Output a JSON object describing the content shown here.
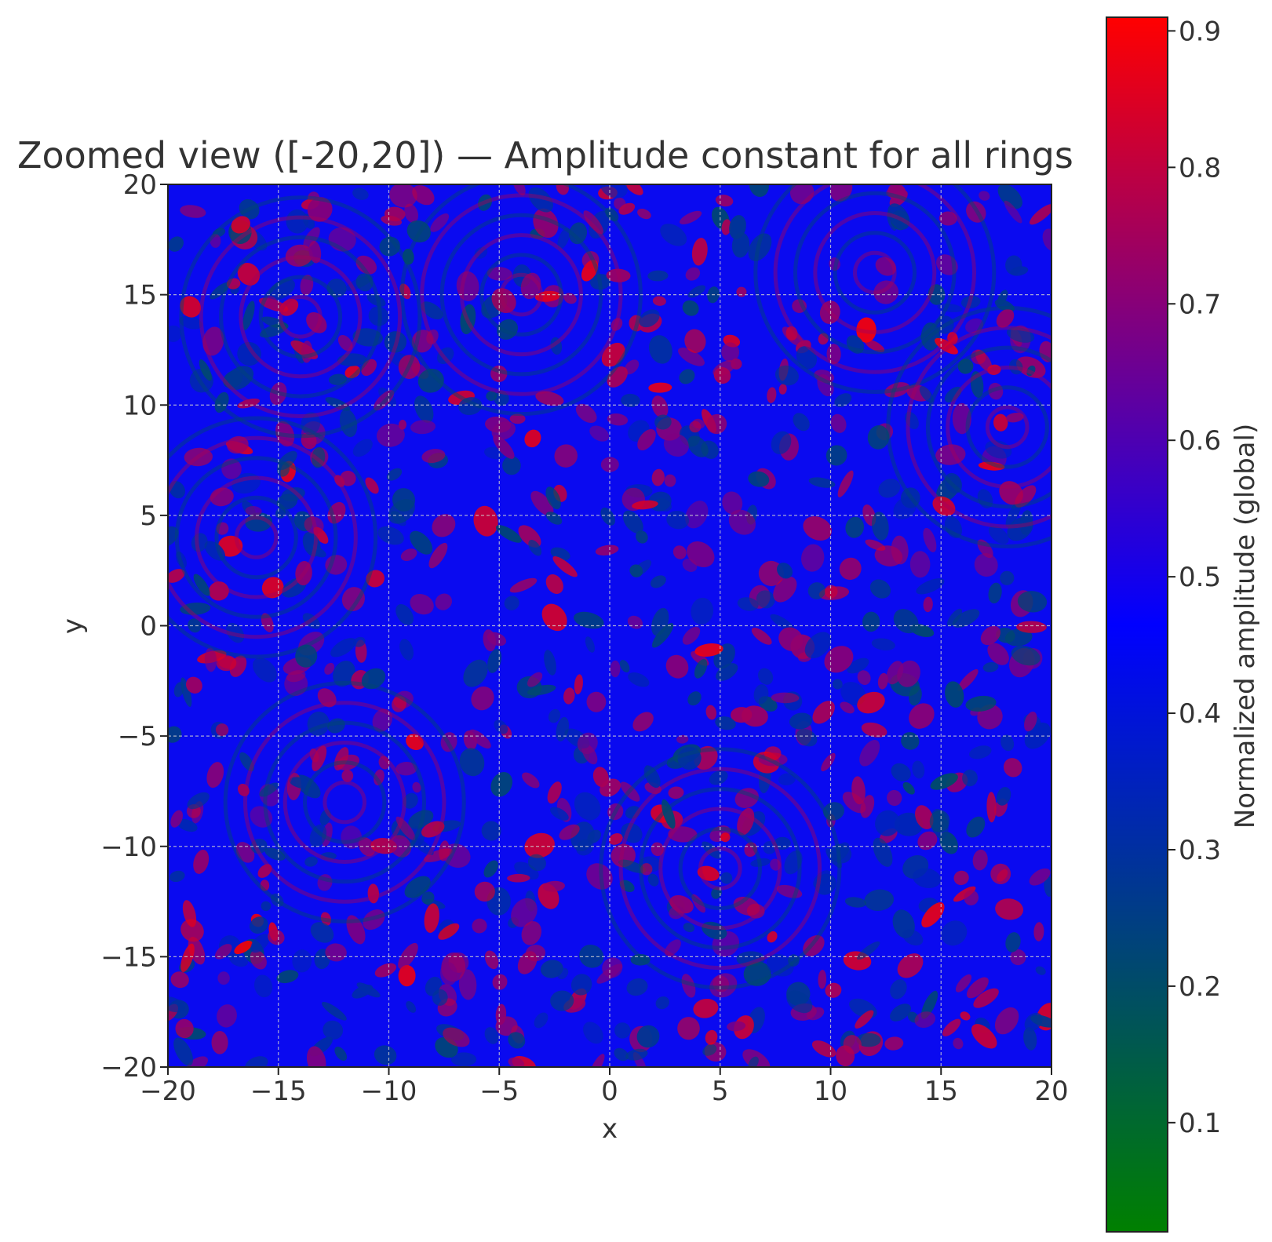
{
  "chart_data": {
    "type": "heatmap",
    "title": "Zoomed view ([-20,20]) — Amplitude constant for all rings",
    "xlabel": "x",
    "ylabel": "y",
    "xlim": [
      -20,
      20
    ],
    "ylim": [
      -20,
      20
    ],
    "x_ticks": [
      -20,
      -15,
      -10,
      -5,
      0,
      5,
      10,
      15,
      20
    ],
    "y_ticks": [
      -20,
      -15,
      -10,
      -5,
      0,
      5,
      10,
      15,
      20
    ],
    "x_tick_labels": [
      "−20",
      "−15",
      "−10",
      "−5",
      "0",
      "5",
      "10",
      "15",
      "20"
    ],
    "y_tick_labels": [
      "−20",
      "−15",
      "−10",
      "−5",
      "0",
      "5",
      "10",
      "15",
      "20"
    ],
    "grid": true,
    "colorbar": {
      "label": "Normalized amplitude (global)",
      "range": [
        0.02,
        0.91
      ],
      "ticks": [
        0.1,
        0.2,
        0.3,
        0.4,
        0.5,
        0.6,
        0.7,
        0.8,
        0.9
      ],
      "tick_labels": [
        "0.1",
        "0.2",
        "0.3",
        "0.4",
        "0.5",
        "0.6",
        "0.7",
        "0.8",
        "0.9"
      ],
      "colormap": [
        {
          "value": 0.02,
          "color": "#008000"
        },
        {
          "value": 0.47,
          "color": "#0000ff"
        },
        {
          "value": 0.91,
          "color": "#ff0000"
        }
      ]
    },
    "ring_centers": [
      {
        "x": -4,
        "y": 15
      },
      {
        "x": 12,
        "y": 16
      },
      {
        "x": 18,
        "y": 9
      },
      {
        "x": -14,
        "y": 14
      },
      {
        "x": 5,
        "y": -11
      },
      {
        "x": -12,
        "y": -8
      },
      {
        "x": -16,
        "y": 4
      }
    ]
  }
}
